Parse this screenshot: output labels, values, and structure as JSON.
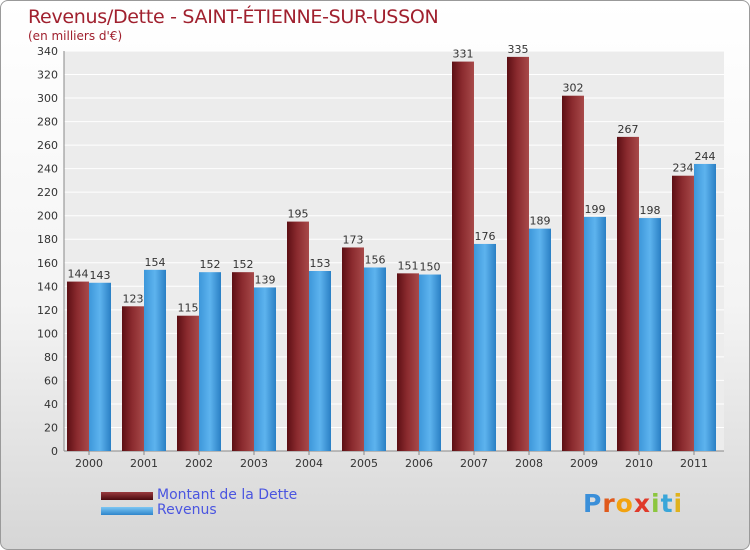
{
  "title": "Revenus/Dette - SAINT-ÉTIENNE-SUR-USSON",
  "subtitle": "(en milliers d'€)",
  "logo_text": "Proxiti",
  "colors": {
    "dette": "#7a1a1f",
    "dette_light": "#a84a4a",
    "revenus": "#4aa6e6",
    "revenus_light": "#6ab9ef",
    "title": "#a0202e",
    "legend_text": "#4a55e0"
  },
  "chart_data": {
    "type": "bar",
    "categories": [
      "2000",
      "2001",
      "2002",
      "2003",
      "2004",
      "2005",
      "2006",
      "2007",
      "2008",
      "2009",
      "2010",
      "2011"
    ],
    "series": [
      {
        "name": "Montant de la Dette",
        "values": [
          144,
          123,
          115,
          152,
          195,
          173,
          151,
          331,
          335,
          302,
          267,
          234
        ]
      },
      {
        "name": "Revenus",
        "values": [
          143,
          154,
          152,
          139,
          153,
          156,
          150,
          176,
          189,
          199,
          198,
          244
        ]
      }
    ],
    "ylim": [
      0,
      340
    ],
    "yticks": [
      0,
      20,
      40,
      60,
      80,
      100,
      120,
      140,
      160,
      180,
      200,
      220,
      240,
      260,
      280,
      300,
      320,
      340
    ],
    "grid": true,
    "legend_position": "bottom-left"
  }
}
